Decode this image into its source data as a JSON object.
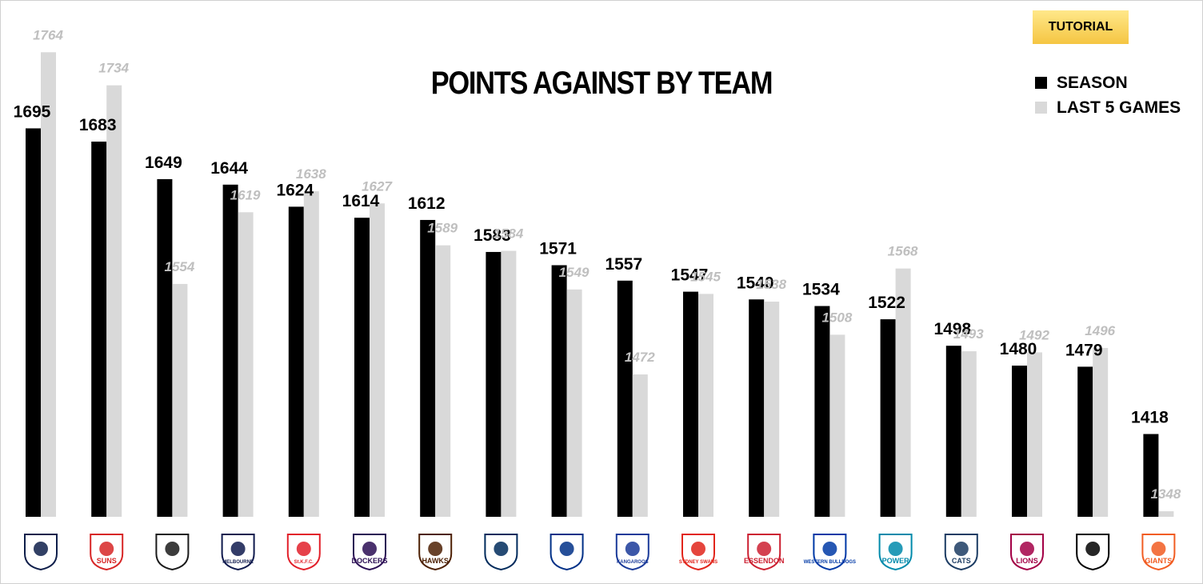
{
  "tutorial_button": "TUTORIAL",
  "chart_data": {
    "type": "bar",
    "title": "POINTS AGAINST BY TEAM",
    "xlabel": "",
    "ylabel": "",
    "categories": [
      "CARLTON",
      "SUNS",
      "TIGERS",
      "MELBOURNE",
      "ST. K.F.C.",
      "DOCKERS",
      "HAWKS",
      "ADELAIDE",
      "EAGLES",
      "KANGAROOS",
      "SYDNEY SWANS",
      "ESSENDON",
      "WESTERN BULLDOGS",
      "POWER",
      "CATS",
      "LIONS",
      "MAGPIES",
      "GIANTS"
    ],
    "series": [
      {
        "name": "SEASON",
        "color": "#000000",
        "values": [
          1695,
          1683,
          1649,
          1644,
          1624,
          1614,
          1612,
          1583,
          1571,
          1557,
          1547,
          1540,
          1534,
          1522,
          1498,
          1480,
          1479,
          1418
        ]
      },
      {
        "name": "LAST 5 GAMES",
        "color": "#d9d9d9",
        "values": [
          1764,
          1734,
          1554,
          1619,
          1638,
          1627,
          1589,
          1584,
          1549,
          1472,
          1545,
          1538,
          1508,
          1568,
          1493,
          1492,
          1496,
          1348
        ]
      }
    ],
    "ylim": [
      1343,
      1770
    ],
    "grid": false,
    "legend_position": "top-right"
  },
  "logos": [
    {
      "name": "carlton",
      "icon": "carlton-logo",
      "text": "",
      "color": "#0e1e4a"
    },
    {
      "name": "gold-coast",
      "icon": "suns-logo",
      "text": "SUNS",
      "color": "#d72626"
    },
    {
      "name": "richmond",
      "icon": "tigers-logo",
      "text": "",
      "color": "#1a1a1a"
    },
    {
      "name": "melbourne",
      "icon": "melbourne-logo",
      "text": "MELBOURNE",
      "color": "#0f1a4e"
    },
    {
      "name": "st-kilda",
      "icon": "st-kilda-logo",
      "text": "St.K.F.C.",
      "color": "#e2202a"
    },
    {
      "name": "fremantle",
      "icon": "dockers-logo",
      "text": "DOCKERS",
      "color": "#2a0d54"
    },
    {
      "name": "hawthorn",
      "icon": "hawks-logo",
      "text": "HAWKS",
      "color": "#4d2004"
    },
    {
      "name": "adelaide",
      "icon": "crows-logo",
      "text": "",
      "color": "#002b5c"
    },
    {
      "name": "west-coast",
      "icon": "eagles-logo",
      "text": "",
      "color": "#003087"
    },
    {
      "name": "north-melbourne",
      "icon": "kangaroos-logo",
      "text": "KANGAROOS",
      "color": "#1a3a99"
    },
    {
      "name": "sydney",
      "icon": "swans-logo",
      "text": "SYDNEY SWANS",
      "color": "#e1251b"
    },
    {
      "name": "essendon",
      "icon": "essendon-logo",
      "text": "ESSENDON",
      "color": "#cc2031"
    },
    {
      "name": "western-bulldogs",
      "icon": "bulldogs-logo",
      "text": "WESTERN BULLDOGS",
      "color": "#0039a6"
    },
    {
      "name": "port-adelaide",
      "icon": "power-logo",
      "text": "POWER",
      "color": "#008aab"
    },
    {
      "name": "geelong",
      "icon": "cats-logo",
      "text": "CATS",
      "color": "#1c3c63"
    },
    {
      "name": "brisbane",
      "icon": "lions-logo",
      "text": "LIONS",
      "color": "#a30046"
    },
    {
      "name": "collingwood",
      "icon": "magpies-logo",
      "text": "",
      "color": "#000000"
    },
    {
      "name": "gws",
      "icon": "giants-logo",
      "text": "GIANTS",
      "color": "#f15c22"
    }
  ]
}
